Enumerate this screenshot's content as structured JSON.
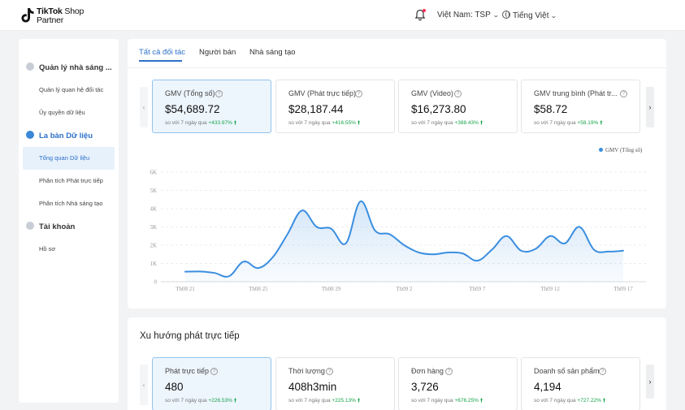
{
  "header": {
    "logo_main": "TikTok",
    "logo_sub1": "Shop",
    "logo_sub2": "Partner",
    "region": "Việt Nam: TSP",
    "language": "Tiếng Việt"
  },
  "sidebar": {
    "groups": [
      {
        "label": "Quản lý nhà sáng ...",
        "icon": "users-icon"
      },
      {
        "label": "La bàn Dữ liệu",
        "icon": "compass-icon"
      },
      {
        "label": "Tài khoản",
        "icon": "account-icon"
      }
    ],
    "items": [
      {
        "label": "Quản lý quan hệ đối tác"
      },
      {
        "label": "Ủy quyền dữ liệu"
      },
      {
        "label": "Tổng quan Dữ liệu"
      },
      {
        "label": "Phân tích Phát trực tiếp"
      },
      {
        "label": "Phân tích Nhà sáng tạo"
      },
      {
        "label": "Hồ sơ"
      }
    ]
  },
  "tabs": [
    "Tất cả đối tác",
    "Người bán",
    "Nhà sáng tạo"
  ],
  "compare_label": "so với 7 ngày qua",
  "gmv_cards": [
    {
      "title": "GMV (Tổng số)",
      "value": "$54,689.72",
      "change": "+433.97%"
    },
    {
      "title": "GMV (Phát trực tiếp)",
      "value": "$28,187.44",
      "change": "+416.55%"
    },
    {
      "title": "GMV (Video)",
      "value": "$16,273.80",
      "change": "+388.43%"
    },
    {
      "title": "GMV trung bình (Phát tr...",
      "value": "$58.72",
      "change": "+58.19%"
    }
  ],
  "live_section": {
    "title": "Xu hướng phát trực tiếp",
    "cards": [
      {
        "title": "Phát trực tiếp",
        "value": "480",
        "change": "+226.53%"
      },
      {
        "title": "Thời lượng",
        "value": "408h3min",
        "change": "+225.13%"
      },
      {
        "title": "Đơn hàng",
        "value": "3,726",
        "change": "+676.25%"
      },
      {
        "title": "Doanh số sản phẩm",
        "value": "4,194",
        "change": "+727.22%"
      }
    ]
  },
  "chart_data": {
    "type": "area",
    "series": [
      {
        "name": "GMV (Tổng số)",
        "color": "#3a8ee0",
        "values": [
          550,
          560,
          480,
          300,
          1100,
          750,
          1350,
          2600,
          3900,
          3000,
          2900,
          2100,
          4400,
          2800,
          2600,
          2000,
          1600,
          1500,
          1600,
          1550,
          1150,
          1750,
          2500,
          1700,
          1800,
          2500,
          2100,
          3000,
          1750,
          1650,
          1700
        ]
      }
    ],
    "x_tick_labels": [
      "Th08 21",
      "Th08 25",
      "Th08 29",
      "Th09 2",
      "Th09 7",
      "Th09 12",
      "Th09 17"
    ],
    "y_tick_labels": [
      "0",
      "1K",
      "2K",
      "3K",
      "4K",
      "5K",
      "6K"
    ],
    "ylim": [
      0,
      6000
    ],
    "grid": true,
    "legend": "top-right"
  }
}
